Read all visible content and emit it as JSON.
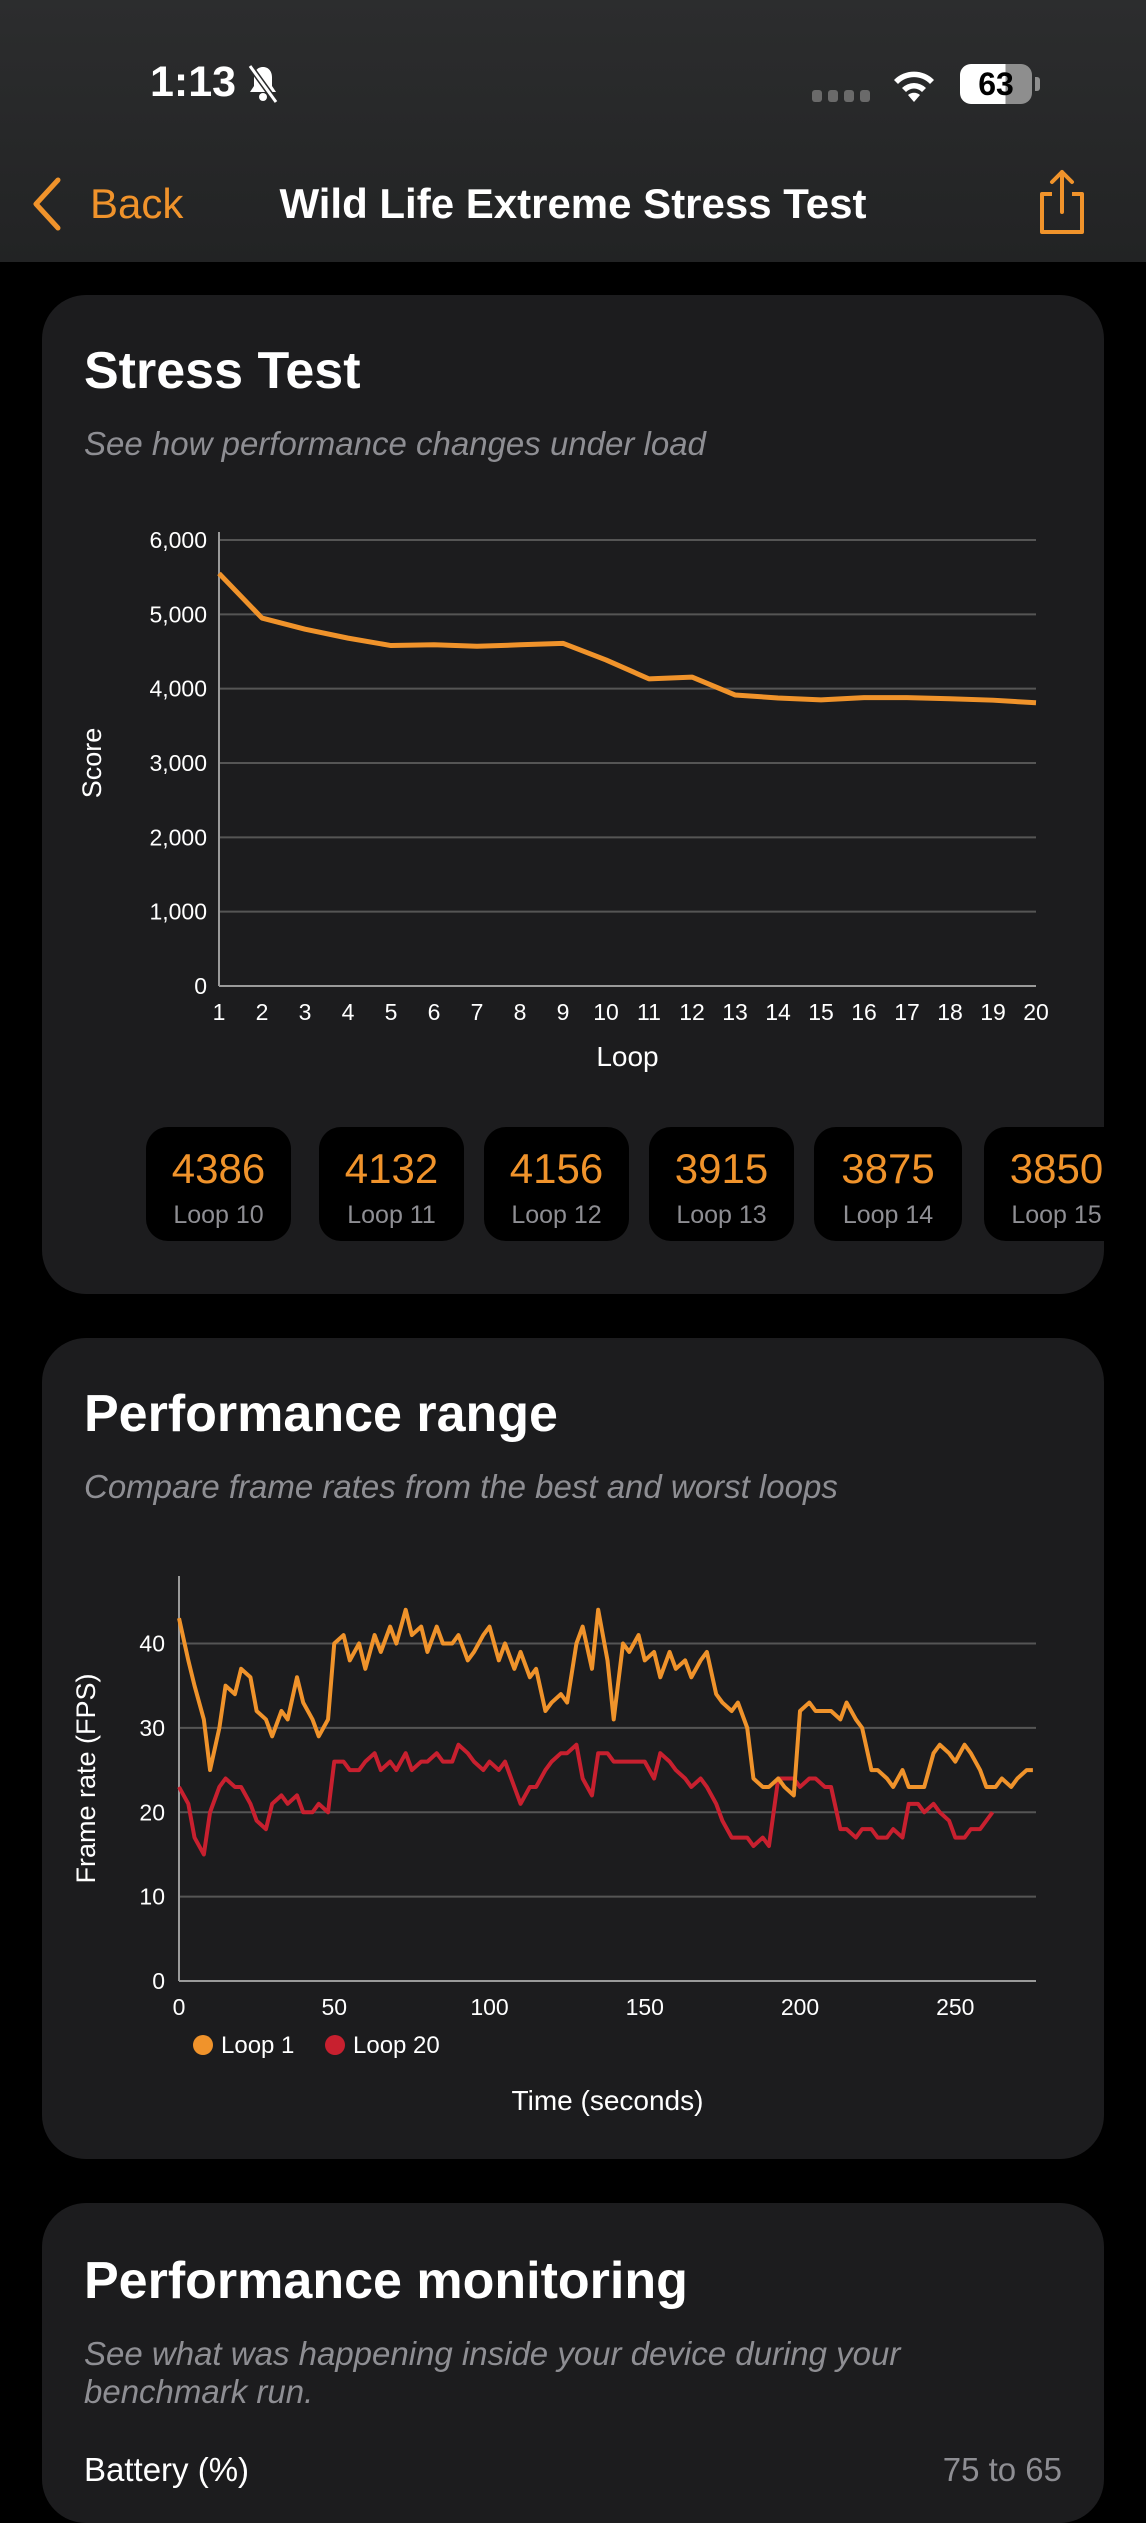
{
  "status_bar": {
    "time": "1:13",
    "battery": "63",
    "icons": [
      "bell-slash-icon",
      "signal-icon",
      "wifi-icon",
      "battery-icon"
    ]
  },
  "nav": {
    "back_label": "Back",
    "title": "Wild Life Extreme Stress Test",
    "share_icon": "share-icon"
  },
  "stress_test": {
    "title": "Stress Test",
    "subtitle": "See how performance changes under load",
    "chips": [
      {
        "value": "4386",
        "label": "Loop 10"
      },
      {
        "value": "4132",
        "label": "Loop 11"
      },
      {
        "value": "4156",
        "label": "Loop 12"
      },
      {
        "value": "3915",
        "label": "Loop 13"
      },
      {
        "value": "3875",
        "label": "Loop 14"
      },
      {
        "value": "3850",
        "label": "Loop 15"
      }
    ]
  },
  "performance_range": {
    "title": "Performance range",
    "subtitle": "Compare frame rates from the best and worst loops"
  },
  "performance_monitoring": {
    "title": "Performance monitoring",
    "subtitle": "See what was happening inside your device during your benchmark run.",
    "rows": [
      {
        "label": "Battery (%)",
        "value": "75 to 65"
      }
    ]
  },
  "colors": {
    "accent": "#f0932b",
    "loop20": "#c8202f",
    "card": "#1c1c1e"
  },
  "chart_data": [
    {
      "type": "line",
      "title": "",
      "xlabel": "Loop",
      "ylabel": "Score",
      "x": [
        1,
        2,
        3,
        4,
        5,
        6,
        7,
        8,
        9,
        10,
        11,
        12,
        13,
        14,
        15,
        16,
        17,
        18,
        19,
        20
      ],
      "xticks": [
        "1",
        "2",
        "3",
        "4",
        "5",
        "6",
        "7",
        "8",
        "9",
        "10",
        "11",
        "12",
        "13",
        "14",
        "15",
        "16",
        "17",
        "18",
        "19",
        "20"
      ],
      "yticks": [
        "0",
        "1,000",
        "2,000",
        "3,000",
        "4,000",
        "5,000",
        "6,000"
      ],
      "ylim": [
        0,
        6000
      ],
      "grid": true,
      "series": [
        {
          "name": "Score",
          "values": [
            5550,
            4950,
            4800,
            4680,
            4580,
            4590,
            4570,
            4590,
            4610,
            4386,
            4132,
            4156,
            3915,
            3875,
            3850,
            3880,
            3880,
            3865,
            3845,
            3810
          ]
        }
      ]
    },
    {
      "type": "line",
      "title": "",
      "xlabel": "Time (seconds)",
      "ylabel": "Frame rate (FPS)",
      "xticks": [
        "0",
        "50",
        "100",
        "150",
        "200",
        "250"
      ],
      "xtick_values": [
        0,
        50,
        100,
        150,
        200,
        250
      ],
      "yticks": [
        "0",
        "10",
        "20",
        "30",
        "40"
      ],
      "ytick_values": [
        0,
        10,
        20,
        30,
        40
      ],
      "xlim": [
        0,
        276
      ],
      "ylim": [
        0,
        48
      ],
      "grid": true,
      "legend": "bottom-left",
      "series": [
        {
          "name": "Loop 1",
          "x": [
            0,
            3,
            5,
            8,
            10,
            13,
            15,
            18,
            20,
            23,
            25,
            28,
            30,
            33,
            35,
            38,
            40,
            43,
            45,
            48,
            50,
            53,
            55,
            58,
            60,
            63,
            65,
            68,
            70,
            73,
            75,
            78,
            80,
            83,
            85,
            88,
            90,
            93,
            95,
            98,
            100,
            103,
            105,
            108,
            110,
            113,
            115,
            118,
            120,
            123,
            125,
            128,
            130,
            133,
            135,
            138,
            140,
            143,
            145,
            148,
            150,
            153,
            155,
            158,
            160,
            163,
            165,
            168,
            170,
            173,
            175,
            178,
            180,
            183,
            185,
            188,
            190,
            193,
            195,
            198,
            200,
            203,
            205,
            208,
            210,
            213,
            215,
            218,
            220,
            223,
            225,
            228,
            230,
            233,
            235,
            238,
            240,
            243,
            245,
            248,
            250,
            253,
            255,
            258,
            260,
            263,
            265,
            268,
            270,
            273,
            275
          ],
          "values": [
            43,
            38,
            35,
            31,
            25,
            30,
            35,
            34,
            37,
            36,
            32,
            31,
            29,
            32,
            31,
            36,
            33,
            31,
            29,
            31,
            40,
            41,
            38,
            40,
            37,
            41,
            39,
            42,
            40,
            44,
            41,
            42,
            39,
            42,
            40,
            40,
            41,
            38,
            39,
            41,
            42,
            38,
            40,
            37,
            39,
            36,
            37,
            32,
            33,
            34,
            33,
            40,
            42,
            37,
            44,
            38,
            31,
            40,
            39,
            41,
            38,
            39,
            36,
            39,
            37,
            38,
            36,
            38,
            39,
            34,
            33,
            32,
            33,
            30,
            24,
            23,
            23,
            24,
            23,
            22,
            32,
            33,
            32,
            32,
            32,
            31,
            33,
            31,
            30,
            25,
            25,
            24,
            23,
            25,
            23,
            23,
            23,
            27,
            28,
            27,
            26,
            28,
            27,
            25,
            23,
            23,
            24,
            23,
            24,
            25,
            25
          ]
        },
        {
          "name": "Loop 20",
          "x": [
            0,
            3,
            5,
            8,
            10,
            13,
            15,
            18,
            20,
            23,
            25,
            28,
            30,
            33,
            35,
            38,
            40,
            43,
            45,
            48,
            50,
            53,
            55,
            58,
            60,
            63,
            65,
            68,
            70,
            73,
            75,
            78,
            80,
            83,
            85,
            88,
            90,
            93,
            95,
            98,
            100,
            103,
            105,
            108,
            110,
            113,
            115,
            118,
            120,
            123,
            125,
            128,
            130,
            133,
            135,
            138,
            140,
            143,
            145,
            148,
            150,
            153,
            155,
            158,
            160,
            163,
            165,
            168,
            170,
            173,
            175,
            178,
            180,
            183,
            185,
            188,
            190,
            193,
            195,
            198,
            200,
            203,
            205,
            208,
            210,
            213,
            215,
            218,
            220,
            223,
            225,
            228,
            230,
            233,
            235,
            238,
            240,
            243,
            245,
            248,
            250,
            253,
            255,
            258,
            262
          ],
          "values": [
            23,
            21,
            17,
            15,
            20,
            23,
            24,
            23,
            23,
            21,
            19,
            18,
            21,
            22,
            21,
            22,
            20,
            20,
            21,
            20,
            26,
            26,
            25,
            25,
            26,
            27,
            25,
            26,
            25,
            27,
            25,
            26,
            26,
            27,
            26,
            26,
            28,
            27,
            26,
            25,
            26,
            25,
            26,
            23,
            21,
            23,
            23,
            25,
            26,
            27,
            27,
            28,
            24,
            22,
            27,
            27,
            26,
            26,
            26,
            26,
            26,
            24,
            27,
            26,
            25,
            24,
            23,
            24,
            23,
            21,
            19,
            17,
            17,
            17,
            16,
            17,
            16,
            24,
            24,
            24,
            23,
            24,
            24,
            23,
            23,
            18,
            18,
            17,
            18,
            18,
            17,
            17,
            18,
            17,
            21,
            21,
            20,
            21,
            20,
            19,
            17,
            17,
            18,
            18,
            20
          ]
        }
      ]
    }
  ]
}
